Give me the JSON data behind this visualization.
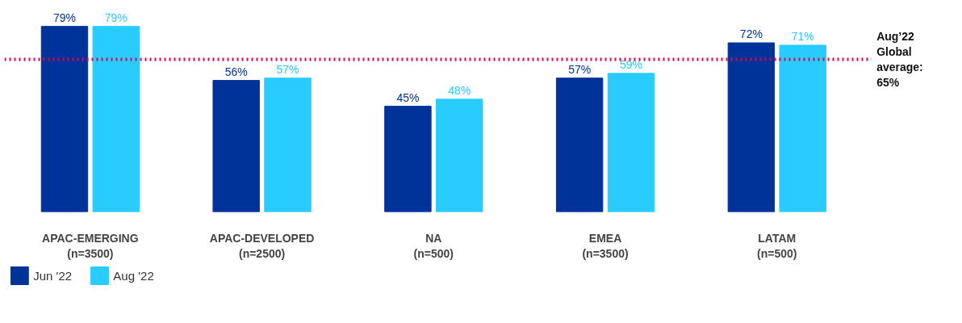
{
  "chart_data": {
    "type": "bar",
    "categories": [
      "APAC-EMERGING\n(n=3500)",
      "APAC-DEVELOPED\n(n=2500)",
      "NA\n(n=500)",
      "EMEA\n(n=3500)",
      "LATAM\n(n=500)"
    ],
    "series": [
      {
        "name": "Jun '22",
        "color": "#003399",
        "values": [
          79,
          56,
          45,
          57,
          72
        ],
        "value_labels": [
          "79%",
          "56%",
          "45%",
          "57%",
          "72%"
        ]
      },
      {
        "name": "Aug '22",
        "color": "#29ccff",
        "values": [
          79,
          57,
          48,
          59,
          71
        ],
        "value_labels": [
          "79%",
          "57%",
          "48%",
          "59%",
          "71%"
        ]
      }
    ],
    "ref_lines": [
      {
        "axis": "y",
        "value": 65,
        "label": "Aug’22 Global average: 65%",
        "color": "#e8004c",
        "line_style": "dotted"
      }
    ],
    "legend": "bottom left"
  }
}
